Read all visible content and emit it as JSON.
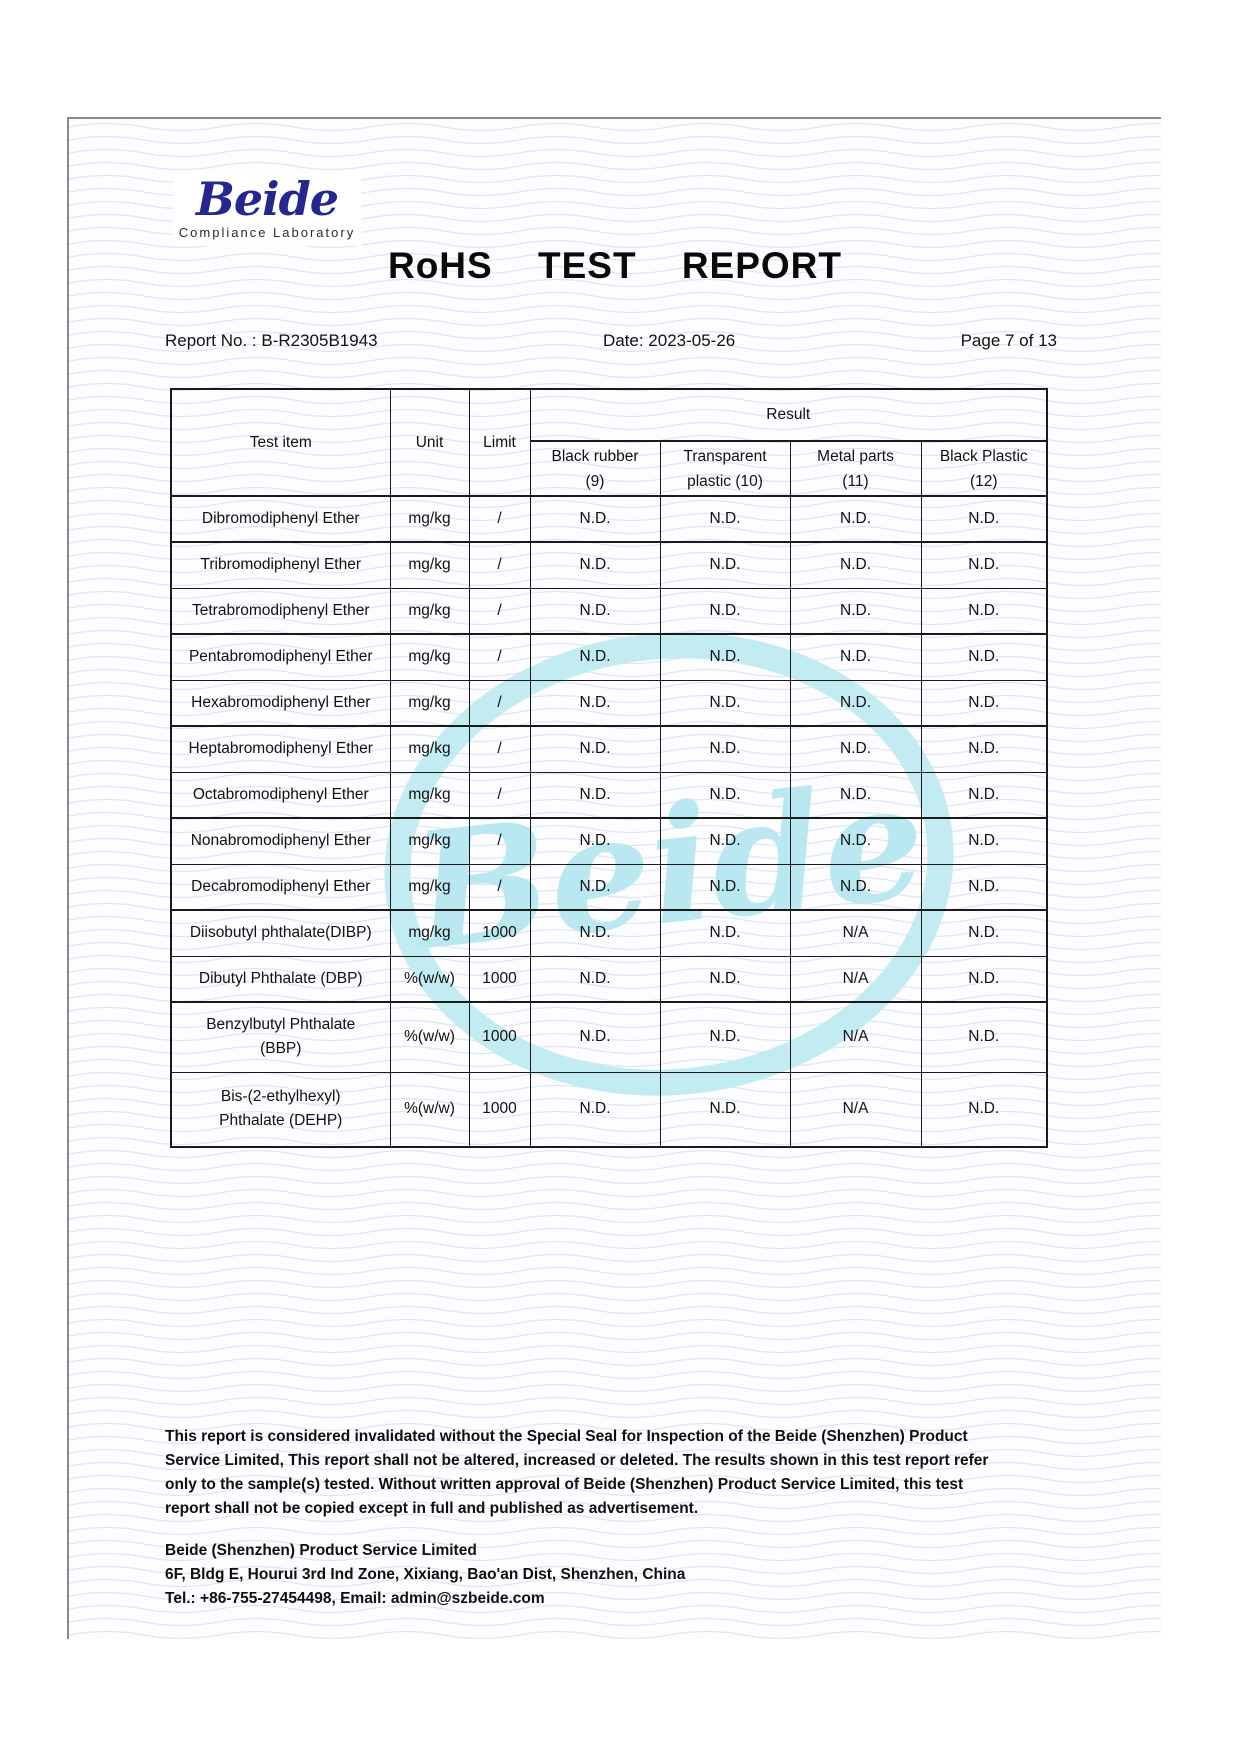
{
  "logo": {
    "brand": "Beide",
    "subtitle": "Compliance Laboratory"
  },
  "title": "RoHS TEST REPORT",
  "meta": {
    "report_no": "Report No. : B-R2305B1943",
    "date": "Date: 2023-05-26",
    "page": "Page 7 of 13"
  },
  "table": {
    "header": {
      "test_item": "Test item",
      "unit": "Unit",
      "limit": "Limit",
      "result": "Result",
      "result_columns": [
        [
          "Black rubber",
          "(9)"
        ],
        [
          "Transparent",
          "plastic (10)"
        ],
        [
          "Metal parts",
          "(11)"
        ],
        [
          "Black Plastic",
          "(12)"
        ]
      ]
    },
    "rows": [
      {
        "item": [
          "Dibromodiphenyl Ether"
        ],
        "unit": "mg/kg",
        "limit": "/",
        "values": [
          "N.D.",
          "N.D.",
          "N.D.",
          "N.D."
        ]
      },
      {
        "item": [
          "Tribromodiphenyl Ether"
        ],
        "unit": "mg/kg",
        "limit": "/",
        "values": [
          "N.D.",
          "N.D.",
          "N.D.",
          "N.D."
        ]
      },
      {
        "item": [
          "Tetrabromodiphenyl Ether"
        ],
        "unit": "mg/kg",
        "limit": "/",
        "values": [
          "N.D.",
          "N.D.",
          "N.D.",
          "N.D."
        ]
      },
      {
        "item": [
          "Pentabromodiphenyl Ether"
        ],
        "unit": "mg/kg",
        "limit": "/",
        "values": [
          "N.D.",
          "N.D.",
          "N.D.",
          "N.D."
        ]
      },
      {
        "item": [
          "Hexabromodiphenyl Ether"
        ],
        "unit": "mg/kg",
        "limit": "/",
        "values": [
          "N.D.",
          "N.D.",
          "N.D.",
          "N.D."
        ]
      },
      {
        "item": [
          "Heptabromodiphenyl Ether"
        ],
        "unit": "mg/kg",
        "limit": "/",
        "values": [
          "N.D.",
          "N.D.",
          "N.D.",
          "N.D."
        ]
      },
      {
        "item": [
          "Octabromodiphenyl Ether"
        ],
        "unit": "mg/kg",
        "limit": "/",
        "values": [
          "N.D.",
          "N.D.",
          "N.D.",
          "N.D."
        ]
      },
      {
        "item": [
          "Nonabromodiphenyl Ether"
        ],
        "unit": "mg/kg",
        "limit": "/",
        "values": [
          "N.D.",
          "N.D.",
          "N.D.",
          "N.D."
        ]
      },
      {
        "item": [
          "Decabromodiphenyl Ether"
        ],
        "unit": "mg/kg",
        "limit": "/",
        "values": [
          "N.D.",
          "N.D.",
          "N.D.",
          "N.D."
        ]
      },
      {
        "item": [
          "Diisobutyl phthalate(DIBP)"
        ],
        "unit": "mg/kg",
        "limit": "1000",
        "values": [
          "N.D.",
          "N.D.",
          "N/A",
          "N.D."
        ]
      },
      {
        "item": [
          "Dibutyl Phthalate (DBP)"
        ],
        "unit": "%(w/w)",
        "limit": "1000",
        "values": [
          "N.D.",
          "N.D.",
          "N/A",
          "N.D."
        ]
      },
      {
        "item": [
          "Benzylbutyl Phthalate",
          "(BBP)"
        ],
        "unit": "%(w/w)",
        "limit": "1000",
        "values": [
          "N.D.",
          "N.D.",
          "N/A",
          "N.D."
        ]
      },
      {
        "item": [
          "Bis-(2-ethylhexyl)",
          "Phthalate (DEHP)"
        ],
        "unit": "%(w/w)",
        "limit": "1000",
        "values": [
          "N.D.",
          "N.D.",
          "N/A",
          "N.D."
        ]
      }
    ]
  },
  "watermark": {
    "text": "Beide"
  },
  "footer": {
    "disclaimer_lines": [
      "This report is considered invalidated without the Special Seal for Inspection of the Beide (Shenzhen) Product",
      "Service Limited, This report shall not be altered, increased or deleted. The results shown in this test report refer",
      "only to the sample(s) tested. Without written approval of Beide (Shenzhen) Product Service Limited, this test",
      "report shall not be copied except in full and published as advertisement."
    ],
    "company": "Beide (Shenzhen) Product Service Limited",
    "address": "6F, Bldg E, Hourui 3rd Ind Zone, Xixiang, Bao'an Dist, Shenzhen, China",
    "contact": "Tel.: +86-755-27454498, Email: admin@szbeide.com"
  },
  "colors": {
    "brand_blue": "#26268f",
    "watermark_cyan": "#b9e8f0",
    "wave_line": "#dde7f2",
    "page_border_gray": "#8a8a8a",
    "table_border": "#1a1a1a"
  }
}
